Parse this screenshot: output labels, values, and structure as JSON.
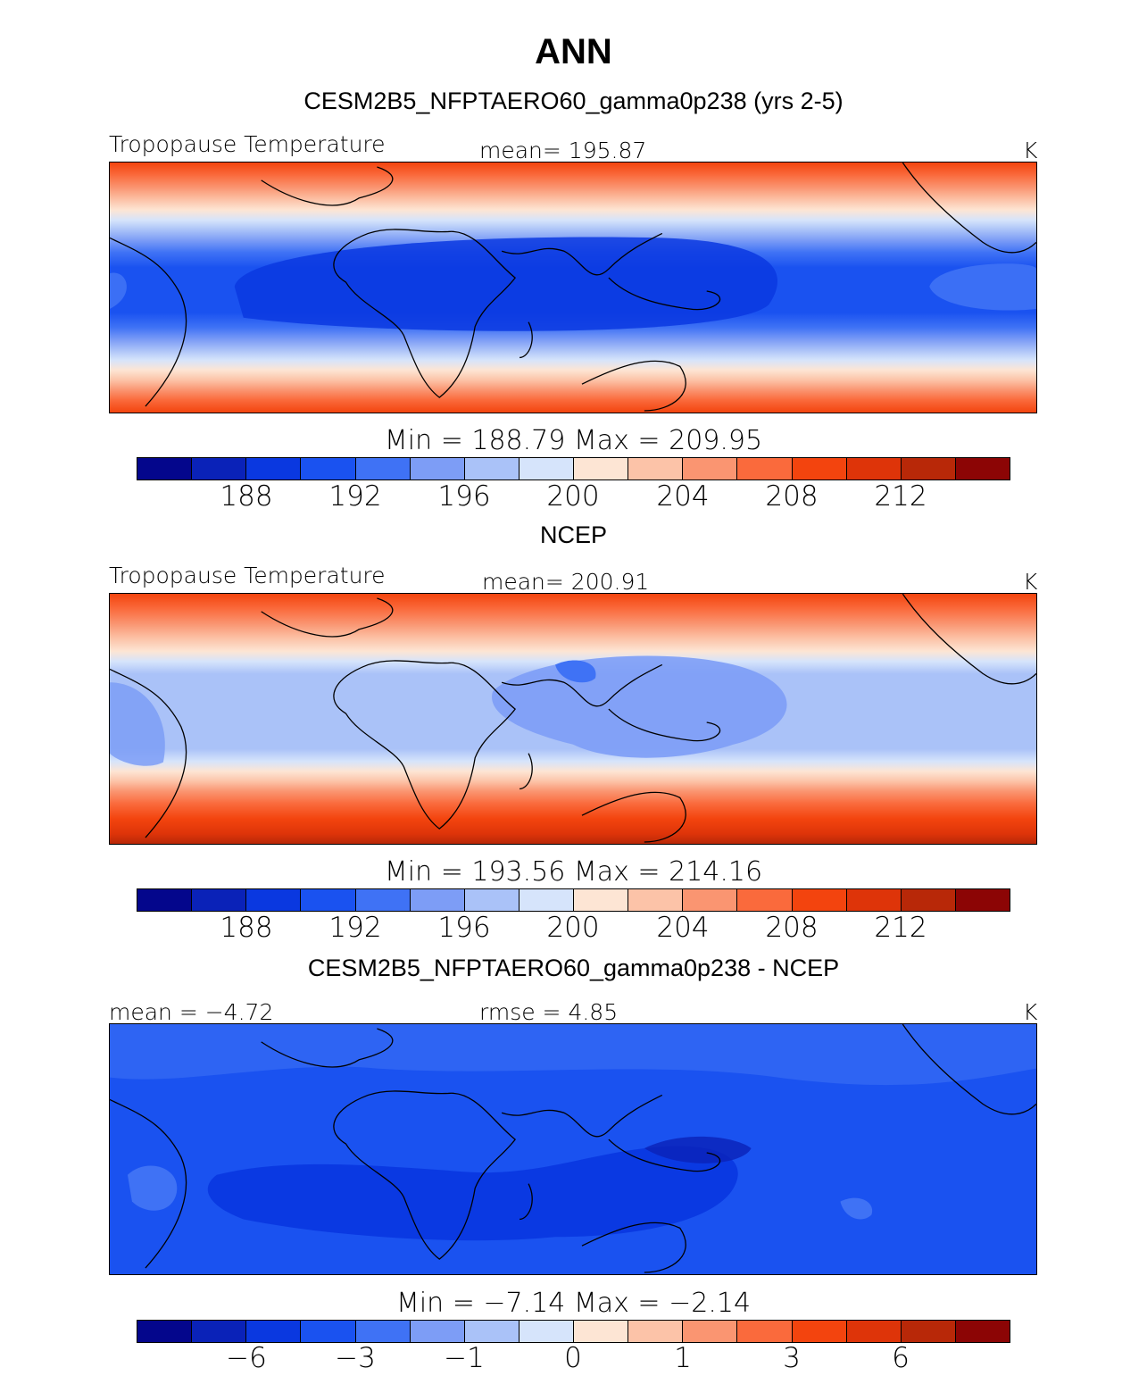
{
  "title": "ANN",
  "colors": [
    "#04068c",
    "#0a22b8",
    "#0a38e0",
    "#1a52f0",
    "#3f72f5",
    "#7d9df6",
    "#aac2f8",
    "#d6e4fb",
    "#fde5d4",
    "#fcc3a8",
    "#fa9571",
    "#fa6a3c",
    "#f3440e",
    "#de3409",
    "#b82808",
    "#8c0505"
  ],
  "panels": [
    {
      "subtitle": "CESM2B5_NFPTAERO60_gamma0p238 (yrs 2-5)",
      "left_label": "Tropopause Temperature",
      "center_label": "mean=  195.87",
      "units": "K",
      "minmax": "Min  =  188.79  Max  =  209.95",
      "tick_labels": [
        "188",
        "192",
        "196",
        "200",
        "204",
        "208",
        "212"
      ]
    },
    {
      "subtitle": "NCEP",
      "left_label": "Tropopause Temperature",
      "center_label": "mean=  200.91",
      "units": "K",
      "minmax": "Min  =  193.56  Max  =  214.16",
      "tick_labels": [
        "188",
        "192",
        "196",
        "200",
        "204",
        "208",
        "212"
      ]
    },
    {
      "subtitle": "CESM2B5_NFPTAERO60_gamma0p238 - NCEP",
      "left_label": "mean =   −4.72",
      "center_label": "rmse =    4.85",
      "units": "K",
      "minmax": "Min  =   −7.14  Max  =   −2.14",
      "tick_labels": [
        "−6",
        "−3",
        "−1",
        "0",
        "1",
        "3",
        "6"
      ]
    }
  ]
}
